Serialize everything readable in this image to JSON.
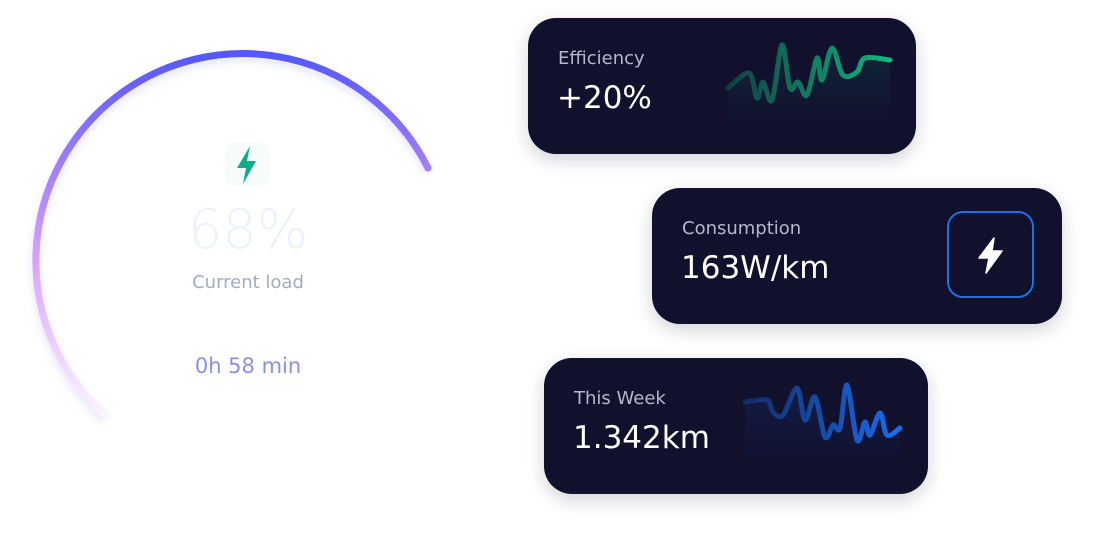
{
  "gauge": {
    "icon": "lightning-bolt-icon",
    "percent": "68%",
    "load_fraction": 0.68,
    "label": "Current load",
    "time": "0h 58 min",
    "colors": {
      "arc_start": "#fbeeff",
      "arc_mid": "#b98cf8",
      "arc_end": "#5557f8",
      "bolt": "#0aae8a"
    }
  },
  "cards": {
    "efficiency": {
      "label": "Efficiency",
      "value": "+20%",
      "color": "#10b77f"
    },
    "consumption": {
      "label": "Consumption",
      "value": "163W/km",
      "icon": "lightning-bolt-icon",
      "color": "#1f6fe8"
    },
    "week": {
      "label": "This Week",
      "value": "1.342km",
      "color": "#1a6df0"
    }
  }
}
